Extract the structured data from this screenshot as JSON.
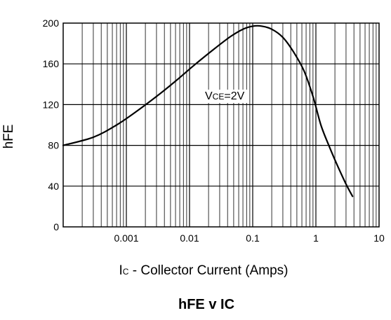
{
  "chart_data": {
    "type": "line",
    "title_parts": {
      "a": "hFE",
      "b": " v ",
      "c": "IC"
    },
    "ylabel": "hFE",
    "xlabel_parts": {
      "sym": "I",
      "sub": "C",
      "rest": " - Collector Current (Amps)"
    },
    "annotation_parts": {
      "sym": "V",
      "sub": "CE",
      "rest": "=2V"
    },
    "x_scale": "log",
    "xlim": [
      0.0001,
      10
    ],
    "ylim": [
      0,
      200
    ],
    "x_ticks": [
      0.001,
      0.01,
      0.1,
      1,
      10
    ],
    "x_tick_labels": [
      "0.001",
      "0.01",
      "0.1",
      "1",
      "10"
    ],
    "y_ticks": [
      0,
      40,
      80,
      120,
      160,
      200
    ],
    "y_tick_labels": [
      "0",
      "40",
      "80",
      "120",
      "160",
      "200"
    ],
    "grid": true,
    "series": [
      {
        "x": [
          0.0001,
          0.0003,
          0.0007,
          0.0015,
          0.003,
          0.006,
          0.012,
          0.025,
          0.045,
          0.07,
          0.1,
          0.14,
          0.2,
          0.3,
          0.45,
          0.65,
          0.9,
          1.2,
          1.6,
          2.2,
          3.0,
          3.8
        ],
        "y": [
          80,
          88,
          100,
          114,
          128,
          143,
          159,
          175,
          187,
          194,
          197,
          197,
          194,
          186,
          171,
          153,
          128,
          100,
          80,
          60,
          42,
          30
        ]
      }
    ]
  }
}
